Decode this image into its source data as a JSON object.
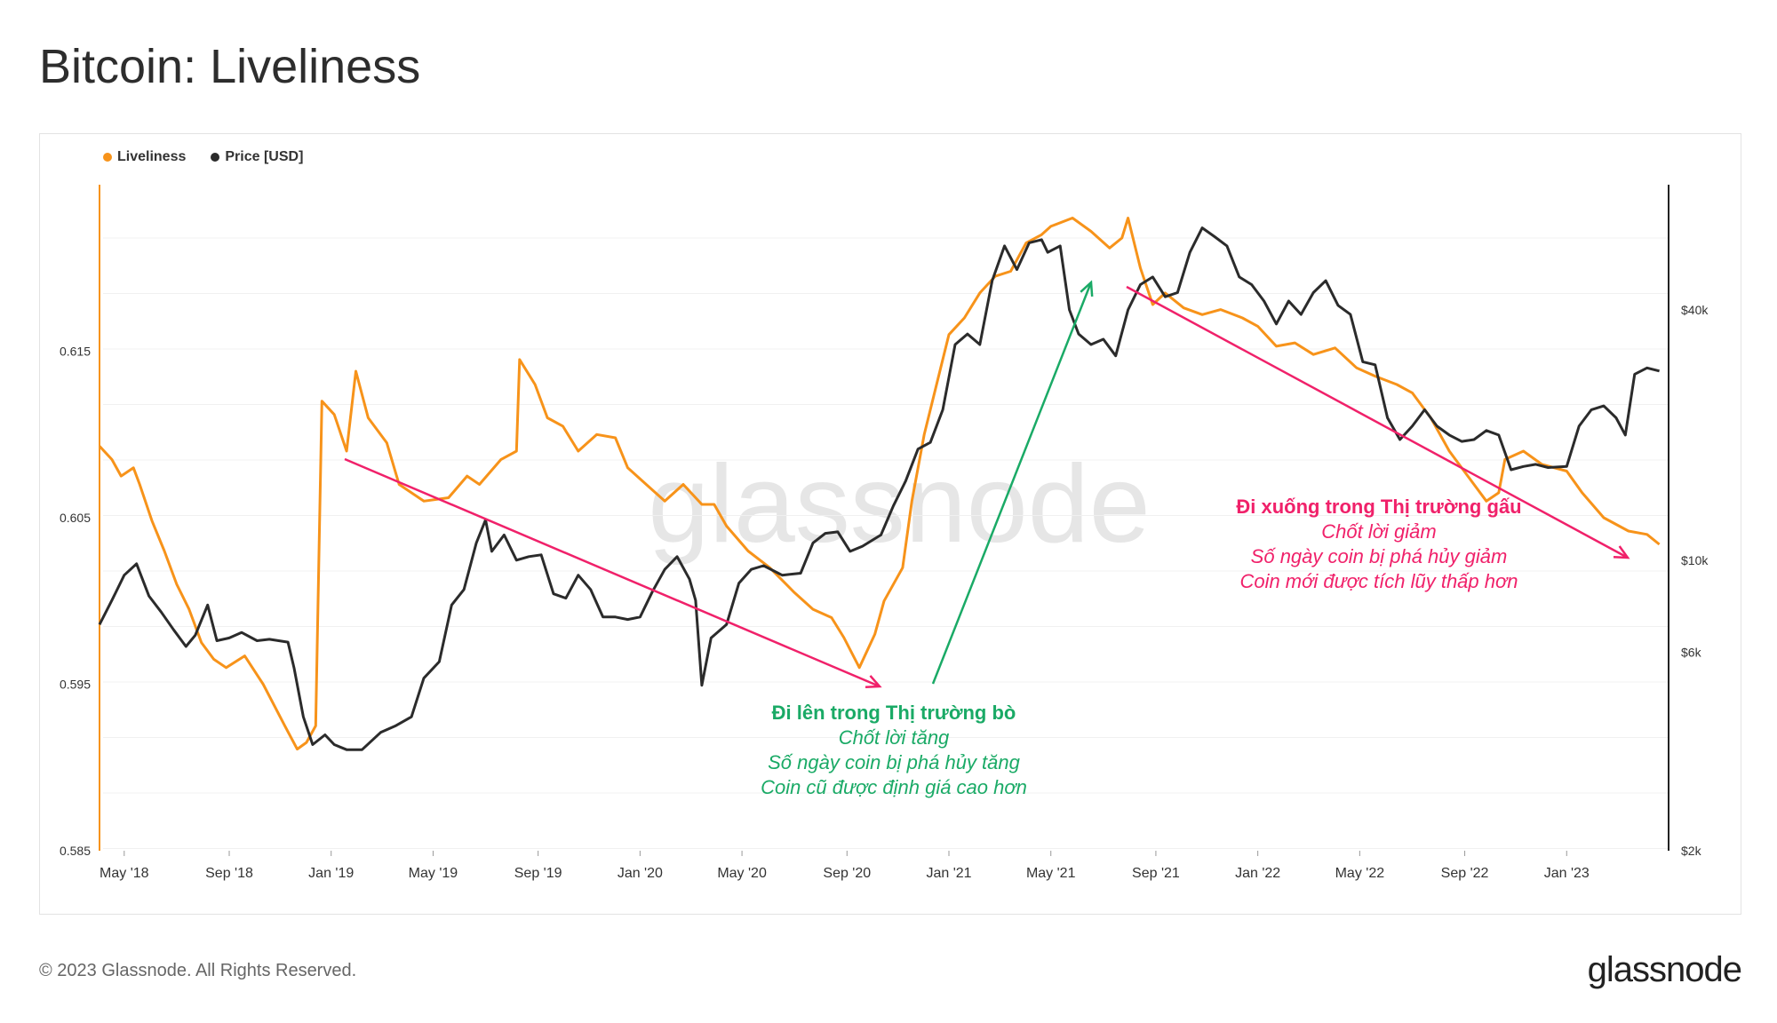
{
  "title": "Bitcoin: Liveliness",
  "footer": "© 2023 Glassnode. All Rights Reserved.",
  "brand": "glassnode",
  "watermark": "glassnode",
  "legend": [
    {
      "label": "Liveliness",
      "color": "#f7931a"
    },
    {
      "label": "Price [USD]",
      "color": "#2b2b2b"
    }
  ],
  "chart_data": {
    "type": "line",
    "x_range": [
      2018.25,
      2023.33
    ],
    "x_ticks": [
      {
        "t": 2018.33,
        "label": "May '18"
      },
      {
        "t": 2018.67,
        "label": "Sep '18"
      },
      {
        "t": 2019.0,
        "label": "Jan '19"
      },
      {
        "t": 2019.33,
        "label": "May '19"
      },
      {
        "t": 2019.67,
        "label": "Sep '19"
      },
      {
        "t": 2020.0,
        "label": "Jan '20"
      },
      {
        "t": 2020.33,
        "label": "May '20"
      },
      {
        "t": 2020.67,
        "label": "Sep '20"
      },
      {
        "t": 2021.0,
        "label": "Jan '21"
      },
      {
        "t": 2021.33,
        "label": "May '21"
      },
      {
        "t": 2021.67,
        "label": "Sep '21"
      },
      {
        "t": 2022.0,
        "label": "Jan '22"
      },
      {
        "t": 2022.33,
        "label": "May '22"
      },
      {
        "t": 2022.67,
        "label": "Sep '22"
      },
      {
        "t": 2023.0,
        "label": "Jan '23"
      }
    ],
    "left_axis": {
      "range": [
        0.585,
        0.625
      ],
      "ticks": [
        {
          "v": 0.585,
          "label": "0.585"
        },
        {
          "v": 0.595,
          "label": "0.595"
        },
        {
          "v": 0.605,
          "label": "0.605"
        },
        {
          "v": 0.615,
          "label": "0.615"
        }
      ]
    },
    "right_axis": {
      "scale": "log",
      "range": [
        2000,
        80000
      ],
      "ticks": [
        {
          "v": 2000,
          "label": "$2k"
        },
        {
          "v": 6000,
          "label": "$6k"
        },
        {
          "v": 10000,
          "label": "$10k"
        },
        {
          "v": 40000,
          "label": "$40k"
        }
      ]
    },
    "series": [
      {
        "name": "Liveliness",
        "axis": "left",
        "color": "#f7931a",
        "points": [
          [
            2018.25,
            0.6093
          ],
          [
            2018.29,
            0.6085
          ],
          [
            2018.32,
            0.6075
          ],
          [
            2018.36,
            0.608
          ],
          [
            2018.38,
            0.607
          ],
          [
            2018.42,
            0.6048
          ],
          [
            2018.46,
            0.603
          ],
          [
            2018.5,
            0.601
          ],
          [
            2018.54,
            0.5995
          ],
          [
            2018.58,
            0.5975
          ],
          [
            2018.62,
            0.5965
          ],
          [
            2018.66,
            0.596
          ],
          [
            2018.72,
            0.5967
          ],
          [
            2018.78,
            0.595
          ],
          [
            2018.85,
            0.5925
          ],
          [
            2018.89,
            0.5911
          ],
          [
            2018.92,
            0.5915
          ],
          [
            2018.95,
            0.5925
          ],
          [
            2018.97,
            0.612
          ],
          [
            2019.01,
            0.6112
          ],
          [
            2019.05,
            0.609
          ],
          [
            2019.08,
            0.6138
          ],
          [
            2019.12,
            0.611
          ],
          [
            2019.18,
            0.6095
          ],
          [
            2019.22,
            0.607
          ],
          [
            2019.3,
            0.606
          ],
          [
            2019.38,
            0.6062
          ],
          [
            2019.44,
            0.6075
          ],
          [
            2019.48,
            0.607
          ],
          [
            2019.55,
            0.6085
          ],
          [
            2019.6,
            0.609
          ],
          [
            2019.61,
            0.6145
          ],
          [
            2019.66,
            0.613
          ],
          [
            2019.7,
            0.611
          ],
          [
            2019.75,
            0.6105
          ],
          [
            2019.8,
            0.609
          ],
          [
            2019.86,
            0.61
          ],
          [
            2019.92,
            0.6098
          ],
          [
            2019.96,
            0.608
          ],
          [
            2020.02,
            0.607
          ],
          [
            2020.08,
            0.606
          ],
          [
            2020.14,
            0.607
          ],
          [
            2020.2,
            0.6058
          ],
          [
            2020.24,
            0.6058
          ],
          [
            2020.28,
            0.6045
          ],
          [
            2020.35,
            0.603
          ],
          [
            2020.42,
            0.602
          ],
          [
            2020.5,
            0.6005
          ],
          [
            2020.56,
            0.5995
          ],
          [
            2020.62,
            0.599
          ],
          [
            2020.66,
            0.5978
          ],
          [
            2020.71,
            0.596
          ],
          [
            2020.76,
            0.598
          ],
          [
            2020.79,
            0.6
          ],
          [
            2020.85,
            0.602
          ],
          [
            2020.88,
            0.606
          ],
          [
            2020.92,
            0.61
          ],
          [
            2020.96,
            0.613
          ],
          [
            2021.0,
            0.616
          ],
          [
            2021.05,
            0.617
          ],
          [
            2021.1,
            0.6185
          ],
          [
            2021.15,
            0.6195
          ],
          [
            2021.2,
            0.6198
          ],
          [
            2021.25,
            0.6215
          ],
          [
            2021.3,
            0.622
          ],
          [
            2021.33,
            0.6225
          ],
          [
            2021.4,
            0.623
          ],
          [
            2021.46,
            0.6222
          ],
          [
            2021.52,
            0.6212
          ],
          [
            2021.56,
            0.6218
          ],
          [
            2021.58,
            0.623
          ],
          [
            2021.62,
            0.62
          ],
          [
            2021.66,
            0.6178
          ],
          [
            2021.7,
            0.6185
          ],
          [
            2021.76,
            0.6176
          ],
          [
            2021.82,
            0.6172
          ],
          [
            2021.88,
            0.6175
          ],
          [
            2021.95,
            0.617
          ],
          [
            2022.0,
            0.6165
          ],
          [
            2022.06,
            0.6153
          ],
          [
            2022.12,
            0.6155
          ],
          [
            2022.18,
            0.6148
          ],
          [
            2022.25,
            0.6152
          ],
          [
            2022.32,
            0.614
          ],
          [
            2022.38,
            0.6135
          ],
          [
            2022.45,
            0.613
          ],
          [
            2022.5,
            0.6125
          ],
          [
            2022.56,
            0.611
          ],
          [
            2022.62,
            0.609
          ],
          [
            2022.68,
            0.6075
          ],
          [
            2022.74,
            0.606
          ],
          [
            2022.78,
            0.6065
          ],
          [
            2022.8,
            0.6085
          ],
          [
            2022.86,
            0.609
          ],
          [
            2022.92,
            0.6082
          ],
          [
            2023.0,
            0.6078
          ],
          [
            2023.05,
            0.6065
          ],
          [
            2023.12,
            0.605
          ],
          [
            2023.2,
            0.6042
          ],
          [
            2023.26,
            0.604
          ],
          [
            2023.3,
            0.6034
          ]
        ]
      },
      {
        "name": "Price [USD]",
        "axis": "right",
        "color": "#2b2b2b",
        "points": [
          [
            2018.25,
            7000
          ],
          [
            2018.29,
            8000
          ],
          [
            2018.33,
            9200
          ],
          [
            2018.37,
            9800
          ],
          [
            2018.41,
            8200
          ],
          [
            2018.45,
            7500
          ],
          [
            2018.49,
            6800
          ],
          [
            2018.53,
            6200
          ],
          [
            2018.56,
            6600
          ],
          [
            2018.6,
            7800
          ],
          [
            2018.63,
            6400
          ],
          [
            2018.67,
            6500
          ],
          [
            2018.71,
            6700
          ],
          [
            2018.76,
            6400
          ],
          [
            2018.8,
            6450
          ],
          [
            2018.86,
            6350
          ],
          [
            2018.88,
            5500
          ],
          [
            2018.91,
            4200
          ],
          [
            2018.94,
            3600
          ],
          [
            2018.98,
            3800
          ],
          [
            2019.01,
            3600
          ],
          [
            2019.05,
            3500
          ],
          [
            2019.1,
            3500
          ],
          [
            2019.16,
            3850
          ],
          [
            2019.21,
            4000
          ],
          [
            2019.26,
            4200
          ],
          [
            2019.3,
            5200
          ],
          [
            2019.35,
            5700
          ],
          [
            2019.39,
            7800
          ],
          [
            2019.43,
            8500
          ],
          [
            2019.47,
            11000
          ],
          [
            2019.5,
            12500
          ],
          [
            2019.52,
            10500
          ],
          [
            2019.56,
            11500
          ],
          [
            2019.6,
            10000
          ],
          [
            2019.64,
            10200
          ],
          [
            2019.68,
            10300
          ],
          [
            2019.72,
            8300
          ],
          [
            2019.76,
            8100
          ],
          [
            2019.8,
            9200
          ],
          [
            2019.84,
            8500
          ],
          [
            2019.88,
            7300
          ],
          [
            2019.92,
            7300
          ],
          [
            2019.96,
            7200
          ],
          [
            2020.0,
            7300
          ],
          [
            2020.04,
            8400
          ],
          [
            2020.08,
            9500
          ],
          [
            2020.12,
            10200
          ],
          [
            2020.16,
            9000
          ],
          [
            2020.18,
            8000
          ],
          [
            2020.2,
            5000
          ],
          [
            2020.23,
            6500
          ],
          [
            2020.28,
            7000
          ],
          [
            2020.32,
            8800
          ],
          [
            2020.36,
            9500
          ],
          [
            2020.4,
            9700
          ],
          [
            2020.46,
            9200
          ],
          [
            2020.52,
            9300
          ],
          [
            2020.56,
            11000
          ],
          [
            2020.6,
            11600
          ],
          [
            2020.64,
            11700
          ],
          [
            2020.68,
            10500
          ],
          [
            2020.72,
            10800
          ],
          [
            2020.78,
            11500
          ],
          [
            2020.82,
            13500
          ],
          [
            2020.86,
            15500
          ],
          [
            2020.9,
            18500
          ],
          [
            2020.94,
            19200
          ],
          [
            2020.98,
            23000
          ],
          [
            2021.02,
            33000
          ],
          [
            2021.06,
            35000
          ],
          [
            2021.1,
            33000
          ],
          [
            2021.14,
            47000
          ],
          [
            2021.18,
            57000
          ],
          [
            2021.22,
            50000
          ],
          [
            2021.26,
            58000
          ],
          [
            2021.3,
            59000
          ],
          [
            2021.32,
            55000
          ],
          [
            2021.36,
            57000
          ],
          [
            2021.39,
            40000
          ],
          [
            2021.42,
            35000
          ],
          [
            2021.46,
            33000
          ],
          [
            2021.5,
            34000
          ],
          [
            2021.54,
            31000
          ],
          [
            2021.58,
            40000
          ],
          [
            2021.62,
            46000
          ],
          [
            2021.66,
            48000
          ],
          [
            2021.7,
            43000
          ],
          [
            2021.74,
            44000
          ],
          [
            2021.78,
            55000
          ],
          [
            2021.82,
            63000
          ],
          [
            2021.86,
            60000
          ],
          [
            2021.9,
            57000
          ],
          [
            2021.94,
            48000
          ],
          [
            2021.98,
            46000
          ],
          [
            2022.02,
            42000
          ],
          [
            2022.06,
            37000
          ],
          [
            2022.1,
            42000
          ],
          [
            2022.14,
            39000
          ],
          [
            2022.18,
            44000
          ],
          [
            2022.22,
            47000
          ],
          [
            2022.26,
            41000
          ],
          [
            2022.3,
            39000
          ],
          [
            2022.34,
            30000
          ],
          [
            2022.38,
            29500
          ],
          [
            2022.42,
            22000
          ],
          [
            2022.46,
            19500
          ],
          [
            2022.5,
            21000
          ],
          [
            2022.54,
            23000
          ],
          [
            2022.58,
            21000
          ],
          [
            2022.62,
            20000
          ],
          [
            2022.66,
            19300
          ],
          [
            2022.7,
            19500
          ],
          [
            2022.74,
            20500
          ],
          [
            2022.78,
            20000
          ],
          [
            2022.82,
            16500
          ],
          [
            2022.86,
            16800
          ],
          [
            2022.9,
            17000
          ],
          [
            2022.94,
            16700
          ],
          [
            2023.0,
            16800
          ],
          [
            2023.04,
            21000
          ],
          [
            2023.08,
            23000
          ],
          [
            2023.12,
            23500
          ],
          [
            2023.16,
            22000
          ],
          [
            2023.19,
            20000
          ],
          [
            2023.22,
            28000
          ],
          [
            2023.26,
            29000
          ],
          [
            2023.3,
            28500
          ]
        ]
      }
    ],
    "annotations": [
      {
        "id": "bull",
        "title": "Đi lên trong Thị trường bò",
        "lines": [
          "Chốt lời tăng",
          "Số ngày coin bị phá hủy tăng",
          "Coin cũ được định giá cao hơn"
        ],
        "color": "#1aaa66"
      },
      {
        "id": "bear",
        "title": "Đi xuống trong Thị trường gấu",
        "lines": [
          "Chốt lời giảm",
          "Số ngày coin bị phá hủy giảm",
          "Coin mới được tích lũy thấp hơn"
        ],
        "color": "#f0216a"
      }
    ]
  }
}
